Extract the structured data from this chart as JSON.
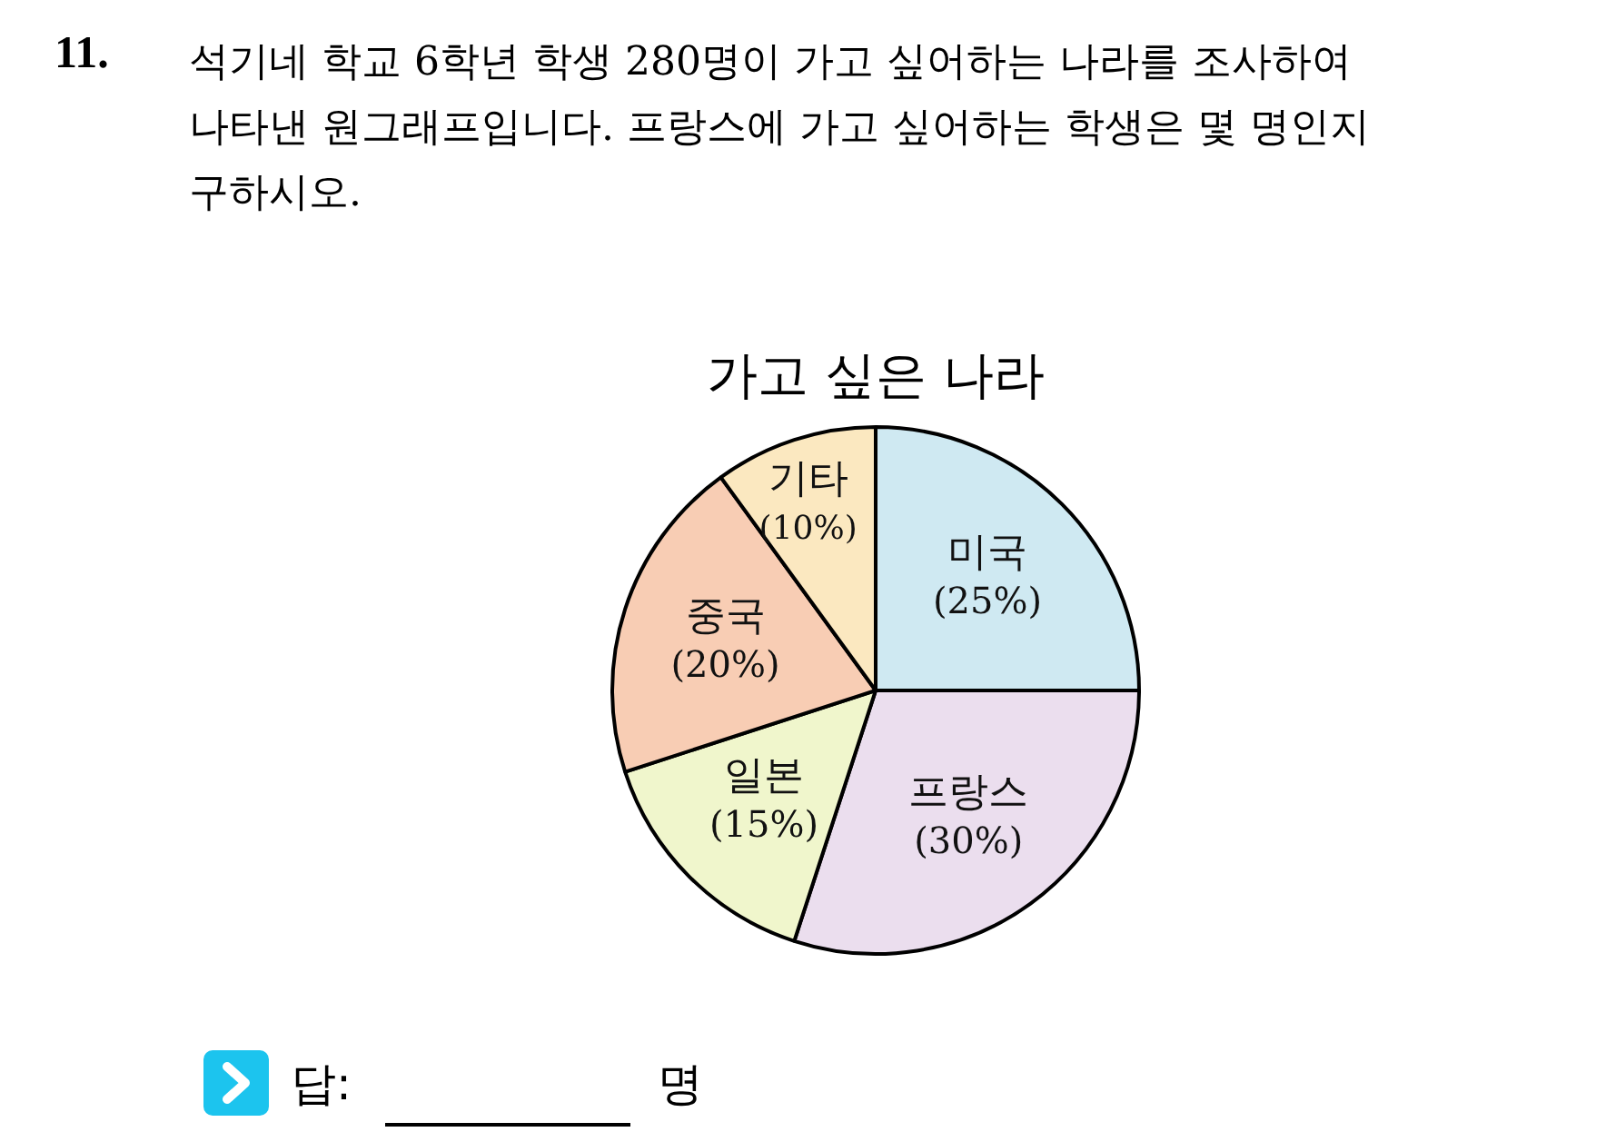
{
  "chart_data": {
    "type": "pie",
    "title": "가고 싶은 나라",
    "categories": [
      "미국",
      "프랑스",
      "일본",
      "중국",
      "기타"
    ],
    "values": [
      25,
      30,
      15,
      20,
      10
    ],
    "value_labels": [
      "(25%)",
      "(30%)",
      "(15%)",
      "(20%)",
      "(10%)"
    ],
    "colors": [
      "#cfe9f2",
      "#ebdeee",
      "#f0f6cc",
      "#f8cdb4",
      "#fbe8c0"
    ],
    "legend": false,
    "annotations": [
      "11.",
      "석기네 학교 6학년 학생 280명이 가고 싶어하는 나라를 조사하여\n나타낸 원그래프입니다. 프랑스에 가고 싶어하는 학생은 몇 명인지\n구하시오.",
      "답:",
      "명"
    ]
  }
}
